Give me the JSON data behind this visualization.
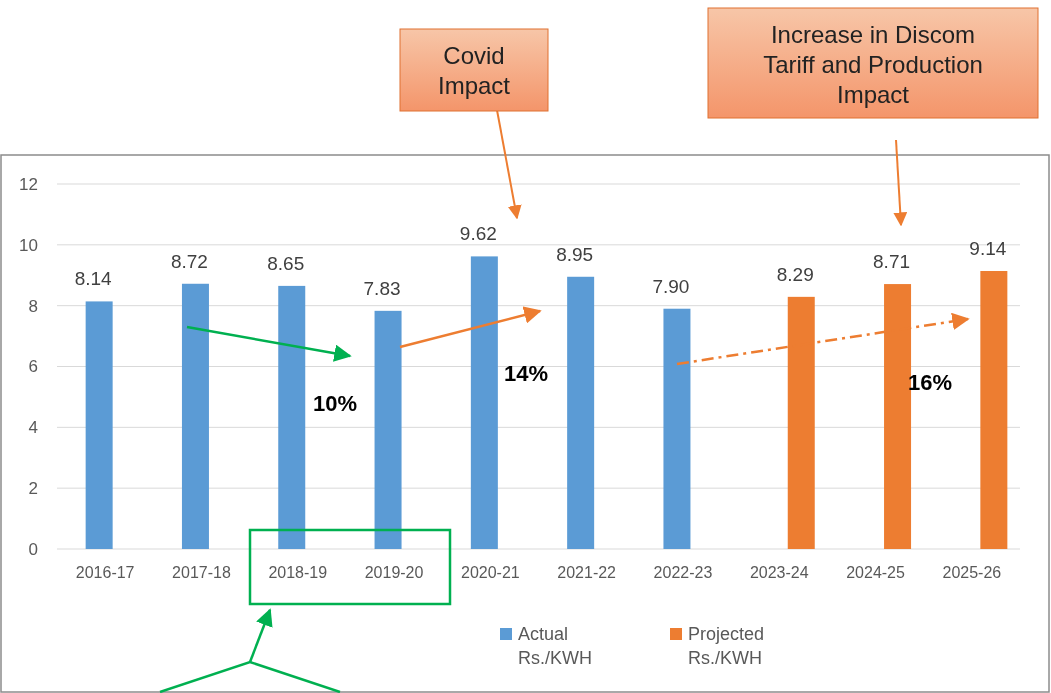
{
  "chart_data": {
    "type": "bar",
    "categories": [
      "2016-17",
      "2017-18",
      "2018-19",
      "2019-20",
      "2020-21",
      "2021-22",
      "2022-23",
      "2023-24",
      "2024-25",
      "2025-26"
    ],
    "series": [
      {
        "name": "Actual Rs./KWH",
        "color": "#5b9bd5",
        "values": [
          8.14,
          8.72,
          8.65,
          7.83,
          9.62,
          8.95,
          7.9,
          null,
          null,
          null
        ],
        "value_labels": [
          "8.14",
          "8.72",
          "8.65",
          "7.83",
          "9.62",
          "8.95",
          "7.90",
          null,
          null,
          null
        ]
      },
      {
        "name": "Projected Rs./KWH",
        "color": "#ed7d31",
        "values": [
          null,
          null,
          null,
          null,
          null,
          null,
          null,
          8.29,
          8.71,
          9.14
        ],
        "value_labels": [
          null,
          null,
          null,
          null,
          null,
          null,
          null,
          "8.29",
          "8.71",
          "9.14"
        ]
      }
    ],
    "ylim": [
      0,
      12
    ],
    "yticks": [
      0,
      2,
      4,
      6,
      8,
      10,
      12
    ],
    "grid": "y",
    "legend": "bottom right",
    "annotations": [
      "Covid Impact",
      "Increase in Discom Tariff and Production Impact",
      "10%",
      "14%",
      "16%"
    ]
  }
}
